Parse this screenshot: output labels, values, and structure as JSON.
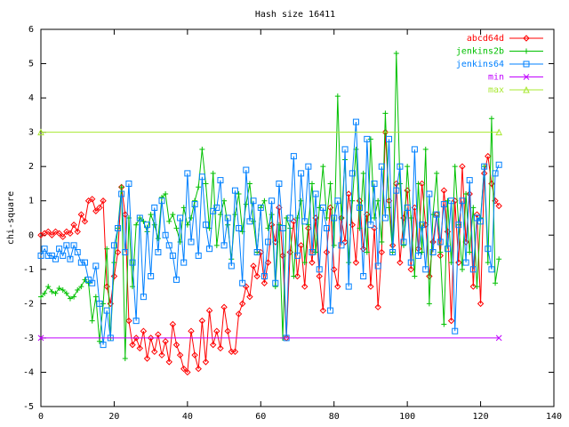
{
  "chart_data": {
    "type": "line",
    "title": "Hash size 16411",
    "y_label": "chi-square",
    "x": [
      0,
      1,
      2,
      3,
      4,
      5,
      6,
      7,
      8,
      9,
      10,
      11,
      12,
      13,
      14,
      15,
      16,
      17,
      18,
      19,
      20,
      21,
      22,
      23,
      24,
      25,
      26,
      27,
      28,
      29,
      30,
      31,
      32,
      33,
      34,
      35,
      36,
      37,
      38,
      39,
      40,
      41,
      42,
      43,
      44,
      45,
      46,
      47,
      48,
      49,
      50,
      51,
      52,
      53,
      54,
      55,
      56,
      57,
      58,
      59,
      60,
      61,
      62,
      63,
      64,
      65,
      66,
      67,
      68,
      69,
      70,
      71,
      72,
      73,
      74,
      75,
      76,
      77,
      78,
      79,
      80,
      81,
      82,
      83,
      84,
      85,
      86,
      87,
      88,
      89,
      90,
      91,
      92,
      93,
      94,
      95,
      96,
      97,
      98,
      99,
      100,
      101,
      102,
      103,
      104,
      105,
      106,
      107,
      108,
      109,
      110,
      111,
      112,
      113,
      114,
      115,
      116,
      117,
      118,
      119,
      120,
      121,
      122,
      123,
      124,
      125
    ],
    "xlim": [
      0,
      140
    ],
    "xticks": [
      0,
      20,
      40,
      60,
      80,
      100,
      120,
      140
    ],
    "ylim": [
      -5,
      6
    ],
    "yticks": [
      -5,
      -4,
      -3,
      -2,
      -1,
      0,
      1,
      2,
      3,
      4,
      5,
      6
    ],
    "grid": false,
    "legend": "top-right",
    "series": [
      {
        "name": "abcd64d",
        "color": "#ff0000",
        "marker": "diamond",
        "values": [
          0,
          0.05,
          0.1,
          0,
          0.1,
          0.05,
          -0.05,
          0.1,
          0.05,
          0.3,
          0.1,
          0.6,
          0.4,
          1.0,
          1.05,
          0.7,
          0.8,
          1.0,
          -1.5,
          -2.0,
          -1.2,
          -0.5,
          1.4,
          0.6,
          -2.5,
          -3.2,
          -3.0,
          -3.3,
          -2.8,
          -3.6,
          -3.0,
          -3.4,
          -2.9,
          -3.5,
          -3.1,
          -3.7,
          -2.6,
          -3.2,
          -3.5,
          -3.9,
          -4.0,
          -2.8,
          -3.5,
          -3.9,
          -2.5,
          -3.7,
          -2.2,
          -3.2,
          -2.8,
          -3.3,
          -2.1,
          -2.8,
          -3.4,
          -3.4,
          -2.3,
          -2.0,
          -1.5,
          -1.8,
          -0.9,
          -1.2,
          -0.5,
          -1.4,
          -0.8,
          0.3,
          -0.2,
          0.8,
          -0.6,
          -3.0,
          -0.5,
          0.4,
          -1.2,
          -0.3,
          -1.5,
          0.2,
          -0.8,
          0.5,
          -1.2,
          -2.2,
          -0.5,
          0.8,
          -1.0,
          -1.5,
          0.5,
          -0.2,
          1.2,
          0.3,
          -0.8,
          1.0,
          -0.4,
          0.6,
          -1.5,
          0.2,
          -2.1,
          -0.5,
          3.0,
          1.0,
          -0.3,
          1.5,
          -0.8,
          0.5,
          1.3,
          -1.0,
          0.8,
          -0.4,
          1.5,
          0.3,
          -1.2,
          -0.2,
          0.6,
          -0.6,
          1.3,
          0.1,
          -2.5,
          1.0,
          -0.8,
          2.0,
          -0.2,
          1.2,
          -1.5,
          0.6,
          -2.0,
          1.8,
          2.3,
          1.5,
          1.0,
          0.85
        ]
      },
      {
        "name": "jenkins2b",
        "color": "#00c000",
        "marker": "plus",
        "values": [
          -1.8,
          -1.7,
          -1.5,
          -1.65,
          -1.7,
          -1.55,
          -1.6,
          -1.7,
          -1.85,
          -1.8,
          -1.6,
          -1.5,
          -1.3,
          -1.4,
          -2.5,
          -1.8,
          -3.1,
          -2.0,
          -0.4,
          -3.0,
          -0.8,
          0.2,
          1.4,
          -3.6,
          0.5,
          -1.5,
          0.3,
          0.5,
          0.4,
          0.1,
          0.6,
          0.3,
          -0.1,
          1.1,
          1.2,
          0.4,
          0.6,
          0.2,
          -0.2,
          0.8,
          0.3,
          0.5,
          1.0,
          1.4,
          2.5,
          1.5,
          0.2,
          1.8,
          -0.3,
          0.6,
          1.0,
          0.3,
          -0.7,
          0.6,
          1.2,
          0.1,
          0.9,
          1.5,
          0.4,
          -0.5,
          0.8,
          1.0,
          0.2,
          0.6,
          -1.5,
          0.3,
          -3.0,
          0.5,
          0.2,
          -1.2,
          0.5,
          1.0,
          -0.8,
          0.3,
          1.5,
          -0.5,
          0.8,
          2.0,
          0.5,
          1.5,
          -0.3,
          4.05,
          0.5,
          2.2,
          -0.8,
          1.0,
          2.5,
          0.2,
          1.8,
          -0.5,
          2.8,
          0.5,
          1.0,
          -0.2,
          3.55,
          0.8,
          -0.5,
          5.3,
          1.5,
          -0.3,
          2.0,
          0.5,
          -1.2,
          1.5,
          -0.5,
          2.5,
          -2.0,
          0.6,
          1.8,
          -0.5,
          -2.6,
          1.0,
          -0.8,
          2.0,
          0.3,
          -1.0,
          1.2,
          -0.5,
          0.8,
          -1.5,
          0.5,
          2.0,
          -0.8,
          3.4,
          -1.4,
          -0.7
        ]
      },
      {
        "name": "jenkins64",
        "color": "#0080ff",
        "marker": "square",
        "values": [
          -0.6,
          -0.4,
          -0.6,
          -0.6,
          -0.7,
          -0.4,
          -0.6,
          -0.3,
          -0.7,
          -0.3,
          -0.5,
          -0.8,
          -0.8,
          -1.3,
          -1.4,
          -0.9,
          -2.0,
          -3.2,
          -2.2,
          -3.0,
          -0.3,
          0.2,
          1.2,
          -0.5,
          1.5,
          -0.8,
          -2.5,
          0.5,
          -1.8,
          0.3,
          -1.2,
          0.8,
          -0.5,
          1.0,
          0.0,
          -0.3,
          -0.6,
          -1.3,
          0.5,
          -0.8,
          1.8,
          -0.2,
          0.9,
          -0.6,
          1.7,
          0.3,
          -0.4,
          0.7,
          0.8,
          1.6,
          -0.3,
          0.5,
          -0.9,
          1.3,
          0.2,
          -1.4,
          1.9,
          0.4,
          1.0,
          -0.5,
          0.8,
          -1.2,
          -0.2,
          1.0,
          -1.4,
          1.5,
          0.2,
          -3.0,
          0.5,
          2.3,
          -0.6,
          1.8,
          0.4,
          2.0,
          -0.5,
          1.2,
          -1.0,
          0.8,
          0.2,
          -2.2,
          0.5,
          1.0,
          -0.3,
          2.5,
          -1.5,
          1.8,
          3.3,
          0.8,
          -1.2,
          2.8,
          0.3,
          1.5,
          -0.9,
          2.0,
          0.5,
          2.8,
          -0.5,
          1.3,
          2.0,
          -0.2,
          0.8,
          -0.8,
          2.5,
          -0.6,
          0.3,
          -1.0,
          1.2,
          -0.5,
          0.6,
          -0.2,
          0.9,
          -0.4,
          1.0,
          -2.8,
          0.3,
          1.0,
          -0.8,
          1.6,
          -1.0,
          0.5,
          0.4,
          2.0,
          -0.4,
          -1.0,
          1.8,
          2.05
        ]
      },
      {
        "name": "min",
        "color": "#c000ff",
        "marker": "cross",
        "x": [
          0,
          125
        ],
        "values": [
          -3,
          -3
        ]
      },
      {
        "name": "max",
        "color": "#a8e830",
        "marker": "triangle",
        "x": [
          0,
          125
        ],
        "values": [
          3,
          3
        ]
      }
    ]
  }
}
